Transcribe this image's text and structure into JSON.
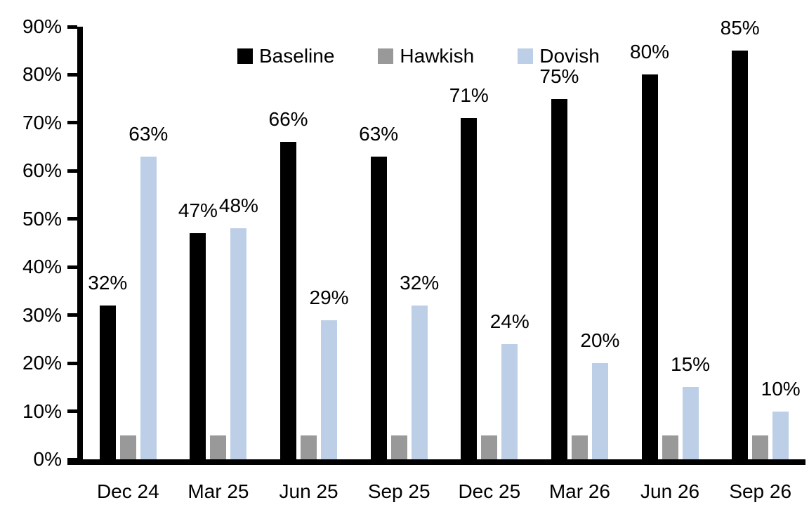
{
  "chart_data": {
    "type": "bar",
    "title": "",
    "categories": [
      "Dec 24",
      "Mar 25",
      "Jun 25",
      "Sep 25",
      "Dec 25",
      "Mar 26",
      "Jun 26",
      "Sep 26"
    ],
    "series": [
      {
        "name": "Baseline",
        "color": "#000000",
        "values": [
          32,
          47,
          66,
          63,
          71,
          75,
          80,
          85
        ],
        "labels": [
          "32%",
          "47%",
          "66%",
          "63%",
          "71%",
          "75%",
          "80%",
          "85%"
        ]
      },
      {
        "name": "Hawkish",
        "color": "#999999",
        "values": [
          5,
          5,
          5,
          5,
          5,
          5,
          5,
          5
        ],
        "labels": [
          "",
          "",
          "",
          "",
          "",
          "",
          "",
          ""
        ]
      },
      {
        "name": "Dovish",
        "color": "#BDCFE6",
        "values": [
          63,
          48,
          29,
          32,
          24,
          20,
          15,
          10
        ],
        "labels": [
          "63%",
          "48%",
          "29%",
          "32%",
          "24%",
          "20%",
          "15%",
          "10%"
        ]
      }
    ],
    "xlabel": "",
    "ylabel": "",
    "ylim": [
      0,
      90
    ],
    "y_tick_step": 10,
    "y_tick_labels": [
      "90%",
      "80%",
      "70%",
      "60%",
      "50%",
      "40%",
      "30%",
      "20%",
      "10%",
      "0%"
    ],
    "legend_position": "top",
    "grid": false,
    "axis_color": "#000000",
    "text_color": "#000000",
    "background_color": "#FFFFFF"
  }
}
